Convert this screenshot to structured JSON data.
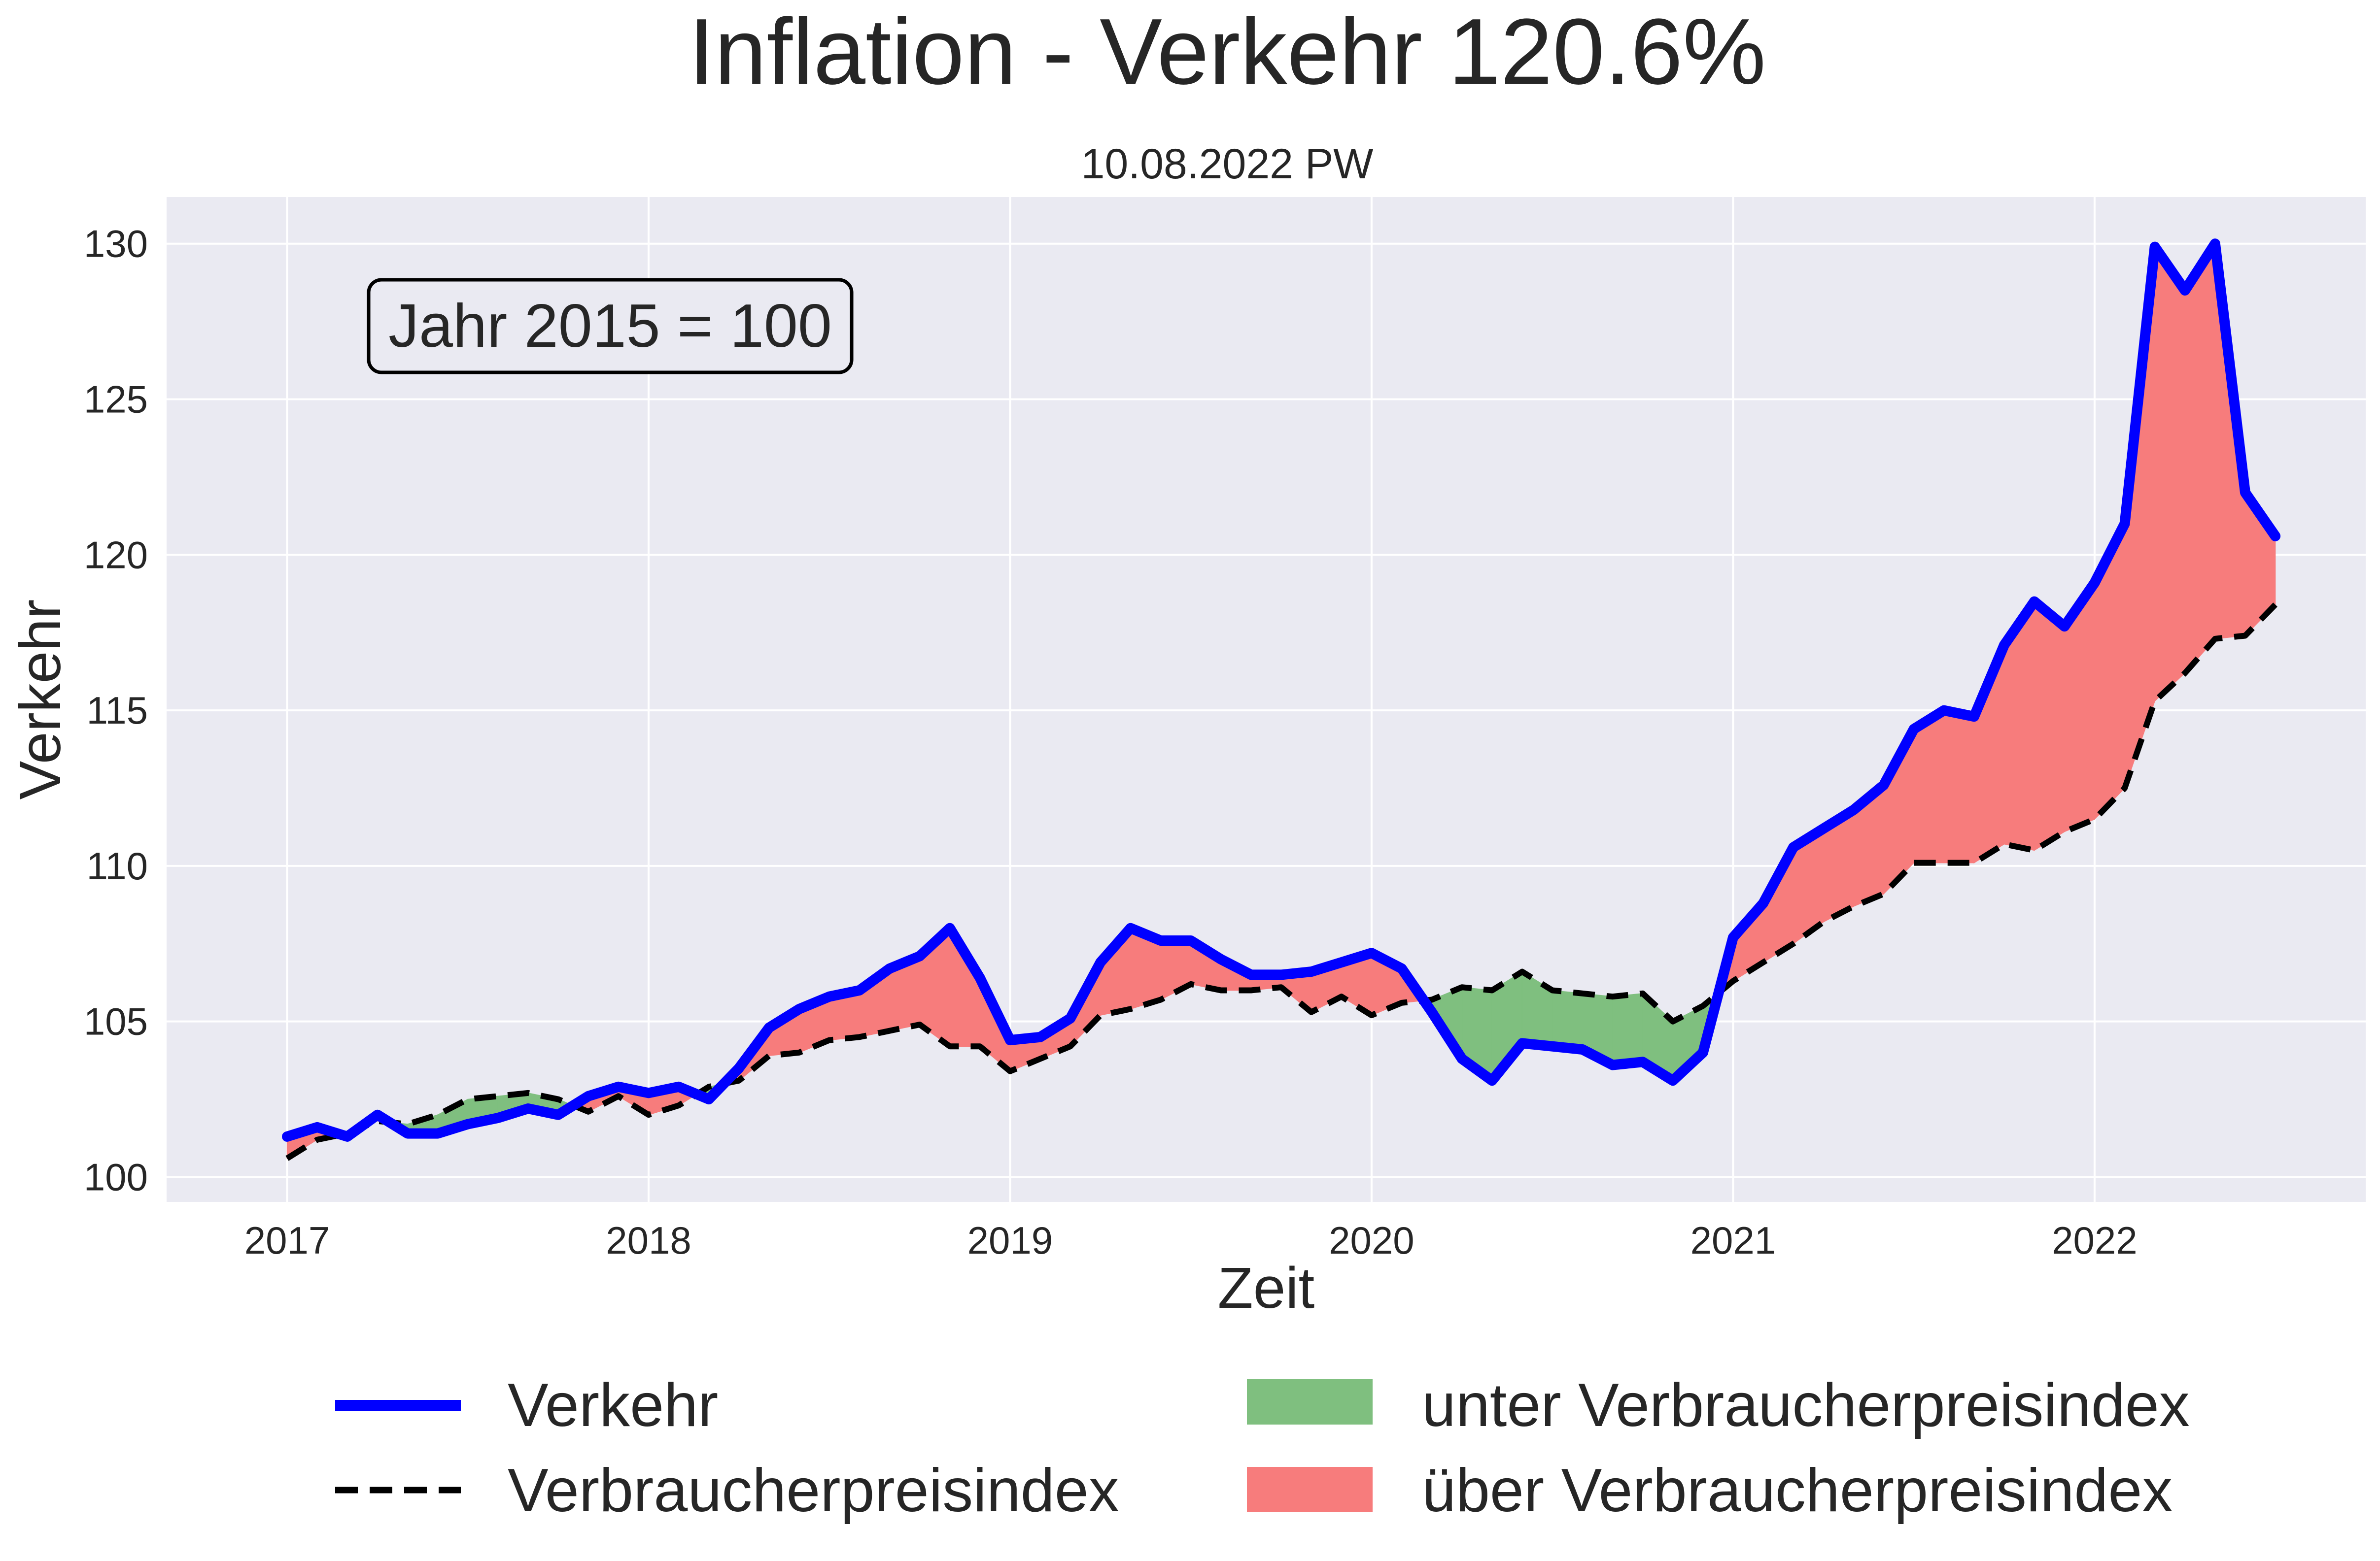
{
  "chart_data": {
    "type": "line",
    "title": "Inflation - Verkehr 120.6%",
    "subtitle": "10.08.2022 PW",
    "xlabel": "Zeit",
    "ylabel": "Verkehr",
    "annotation": "Jahr 2015 = 100",
    "x_ticks": [
      "2017",
      "2018",
      "2019",
      "2020",
      "2021",
      "2022"
    ],
    "y_ticks": [
      "100",
      "105",
      "110",
      "115",
      "120",
      "125",
      "130"
    ],
    "xlim": [
      "2016-09",
      "2022-10"
    ],
    "ylim": [
      99.2,
      131.5
    ],
    "grid": true,
    "legend_position": "bottom",
    "colors": {
      "background": "#eaeaf2",
      "grid": "#ffffff",
      "verkehr": "#0000ff",
      "vpi": "#000000",
      "below": "#7fbf7f",
      "above": "#f77c7c"
    },
    "legend": {
      "verkehr": "Verkehr",
      "vpi": "Verbraucherpreisindex",
      "below": "unter Verbraucherpreisindex",
      "above": "über Verbraucherpreisindex"
    },
    "x": [
      "2017-01",
      "2017-02",
      "2017-03",
      "2017-04",
      "2017-05",
      "2017-06",
      "2017-07",
      "2017-08",
      "2017-09",
      "2017-10",
      "2017-11",
      "2017-12",
      "2018-01",
      "2018-02",
      "2018-03",
      "2018-04",
      "2018-05",
      "2018-06",
      "2018-07",
      "2018-08",
      "2018-09",
      "2018-10",
      "2018-11",
      "2018-12",
      "2019-01",
      "2019-02",
      "2019-03",
      "2019-04",
      "2019-05",
      "2019-06",
      "2019-07",
      "2019-08",
      "2019-09",
      "2019-10",
      "2019-11",
      "2019-12",
      "2020-01",
      "2020-02",
      "2020-03",
      "2020-04",
      "2020-05",
      "2020-06",
      "2020-07",
      "2020-08",
      "2020-09",
      "2020-10",
      "2020-11",
      "2020-12",
      "2021-01",
      "2021-02",
      "2021-03",
      "2021-04",
      "2021-05",
      "2021-06",
      "2021-07",
      "2021-08",
      "2021-09",
      "2021-10",
      "2021-11",
      "2021-12",
      "2022-01",
      "2022-02",
      "2022-03",
      "2022-04",
      "2022-05",
      "2022-06",
      "2022-07"
    ],
    "series": [
      {
        "name": "Verkehr",
        "values": [
          101.3,
          101.6,
          101.3,
          102.0,
          101.4,
          101.4,
          101.7,
          101.9,
          102.2,
          102.0,
          102.6,
          102.9,
          102.7,
          102.9,
          102.5,
          103.5,
          104.8,
          105.4,
          105.8,
          106.0,
          106.7,
          107.1,
          108.0,
          106.4,
          104.4,
          104.5,
          105.1,
          106.9,
          108.0,
          107.6,
          107.6,
          107.0,
          106.5,
          106.5,
          106.6,
          106.9,
          107.2,
          106.7,
          105.3,
          103.8,
          103.1,
          104.3,
          104.2,
          104.1,
          103.6,
          103.7,
          103.1,
          104.0,
          107.7,
          108.8,
          110.6,
          111.2,
          111.8,
          112.6,
          114.4,
          115.0,
          114.8,
          117.1,
          118.5,
          117.7,
          119.1,
          121.0,
          129.9,
          128.5,
          130.0,
          122.0,
          120.6
        ]
      },
      {
        "name": "Verbraucherpreisindex",
        "values": [
          100.6,
          101.2,
          101.4,
          101.8,
          101.7,
          102.0,
          102.5,
          102.6,
          102.7,
          102.5,
          102.1,
          102.6,
          102.0,
          102.3,
          102.9,
          103.1,
          103.9,
          104.0,
          104.4,
          104.5,
          104.7,
          104.9,
          104.2,
          104.2,
          103.4,
          103.8,
          104.2,
          105.2,
          105.4,
          105.7,
          106.2,
          106.0,
          106.0,
          106.1,
          105.3,
          105.8,
          105.2,
          105.6,
          105.7,
          106.1,
          106.0,
          106.6,
          106.0,
          105.9,
          105.8,
          105.9,
          105.0,
          105.5,
          106.3,
          106.9,
          107.5,
          108.2,
          108.7,
          109.1,
          110.1,
          110.1,
          110.1,
          110.7,
          110.5,
          111.1,
          111.5,
          112.5,
          115.3,
          116.2,
          117.3,
          117.4,
          118.4
        ]
      }
    ]
  }
}
